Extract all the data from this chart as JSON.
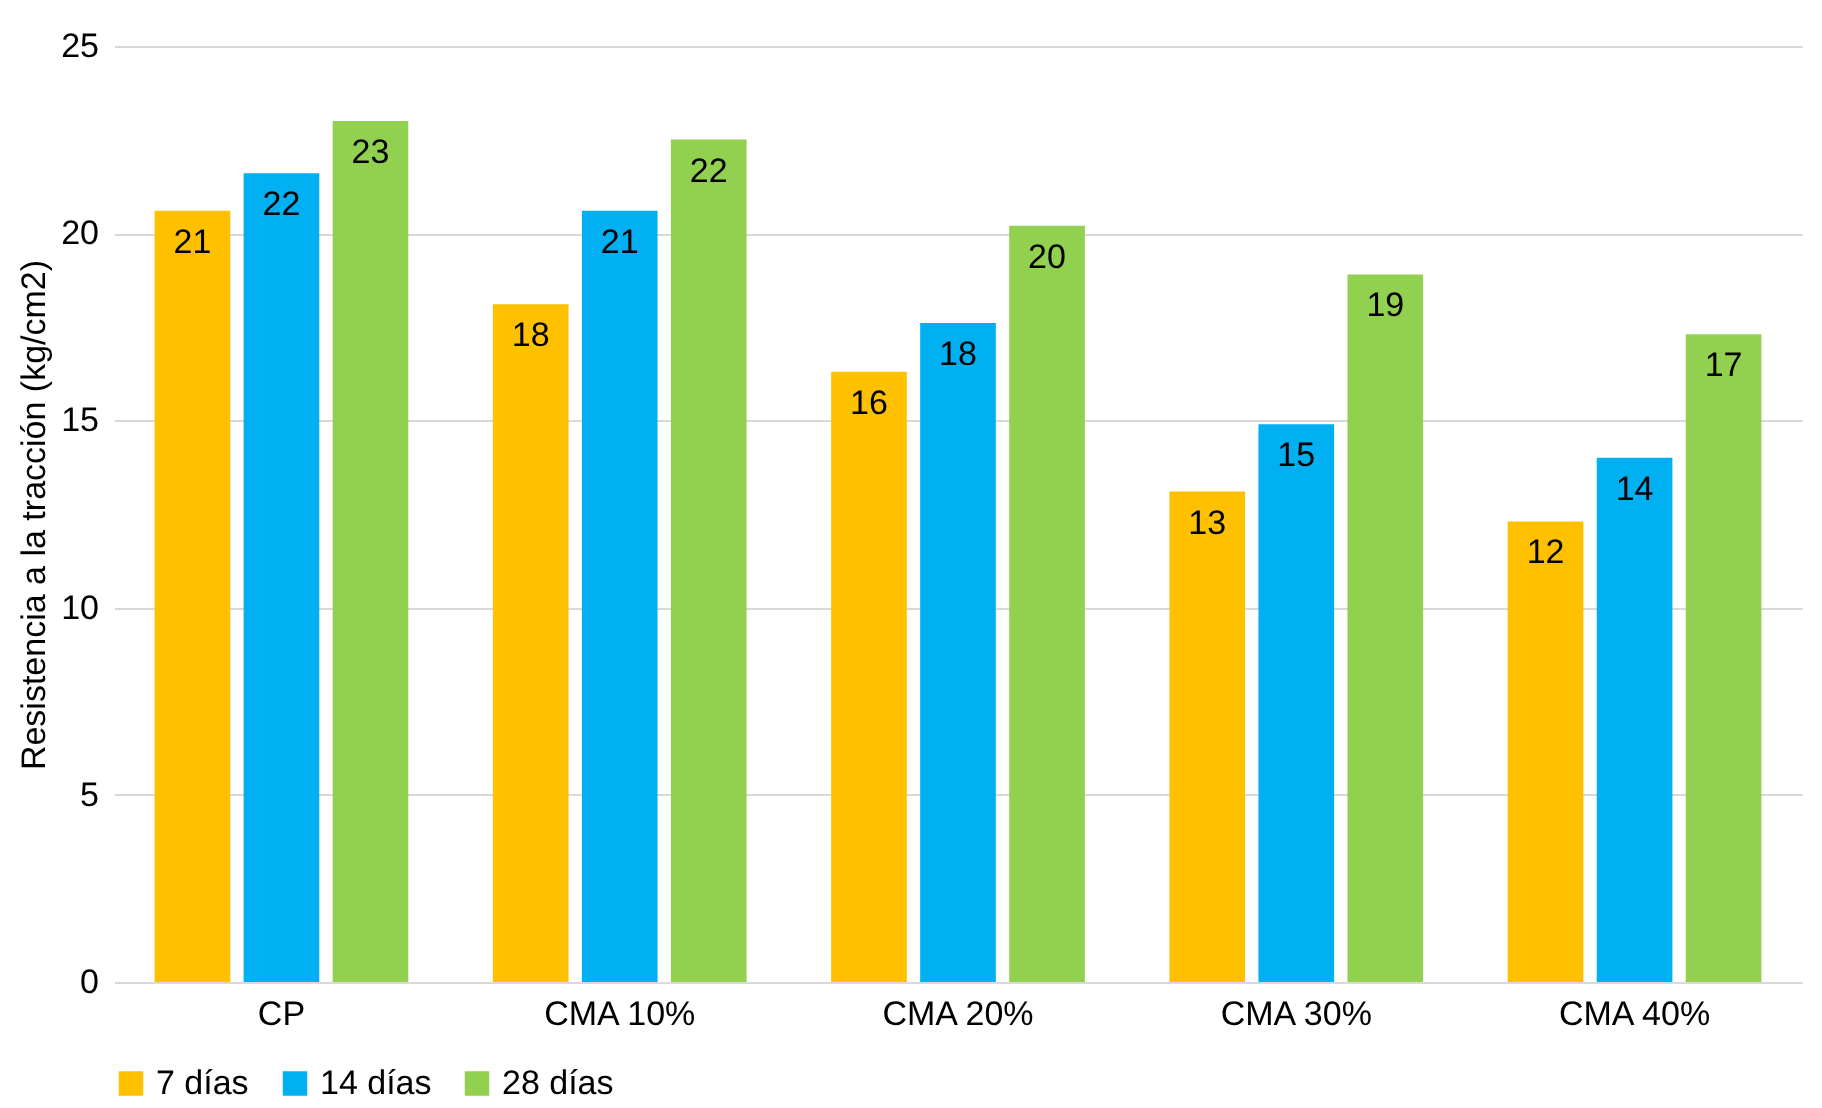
{
  "chart_data": {
    "type": "bar",
    "ylabel": "Resistencia a la tracción (kg/cm2)",
    "categories": [
      "CP",
      "CMA 10%",
      "CMA 20%",
      "CMA 30%",
      "CMA 40%"
    ],
    "series": [
      {
        "name": "7 días",
        "color": "#ffc000",
        "values": [
          20.6,
          18.1,
          16.3,
          13.1,
          12.3
        ],
        "value_labels": [
          "21",
          "18",
          "16",
          "13",
          "12"
        ]
      },
      {
        "name": "14 días",
        "color": "#00b0f0",
        "values": [
          21.6,
          20.6,
          17.6,
          14.9,
          14.0
        ],
        "value_labels": [
          "22",
          "21",
          "18",
          "15",
          "14"
        ]
      },
      {
        "name": "28 días",
        "color": "#92d050",
        "values": [
          23.0,
          22.5,
          20.2,
          18.9,
          17.3
        ],
        "value_labels": [
          "23",
          "22",
          "20",
          "19",
          "17"
        ]
      }
    ],
    "ylim": [
      0,
      25
    ],
    "yticks": [
      0,
      5,
      10,
      15,
      20,
      25
    ],
    "grid": "y",
    "legend": "bottom"
  }
}
